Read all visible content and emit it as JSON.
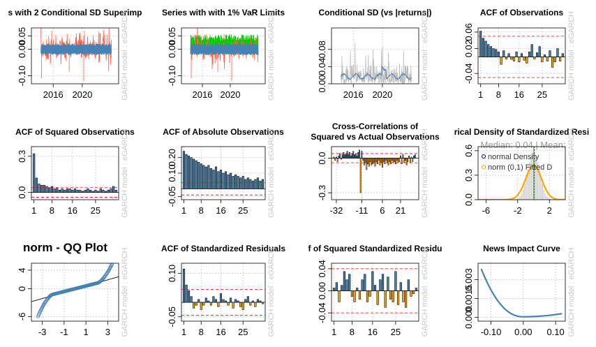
{
  "panels": [
    {
      "id": "p1",
      "type": "line",
      "title": "s with 2 Conditional SD Superimp",
      "ylim": [
        -0.13,
        0.08
      ],
      "xlim": [
        2013,
        2025
      ],
      "yticks": [
        {
          "v": -0.1,
          "t": "-0.10"
        },
        {
          "v": 0,
          "t": "0.00"
        },
        {
          "v": 0.05,
          "t": "0.05"
        }
      ],
      "xticks": [
        {
          "v": 2016,
          "t": "2016"
        },
        {
          "v": 2020,
          "t": "2020"
        }
      ],
      "series": [
        {
          "color": "#ff6347",
          "style": "returns",
          "amp": 0.035,
          "spikes": [
            [
              2014.4,
              -0.11
            ],
            [
              2015.8,
              0.07
            ],
            [
              2018.2,
              -0.085
            ],
            [
              2020.2,
              -0.12
            ],
            [
              2020.3,
              0.07
            ],
            [
              2022.4,
              0.06
            ]
          ]
        },
        {
          "color": "#4682b4",
          "style": "band",
          "amp": 0.02
        }
      ],
      "side_text": "GARCH model : eGARCH"
    },
    {
      "id": "p2",
      "type": "line",
      "title": "Series with with 1% VaR Limits",
      "ylim": [
        -0.13,
        0.08
      ],
      "xlim": [
        2013,
        2025
      ],
      "yticks": [
        {
          "v": -0.1,
          "t": "-0.10"
        },
        {
          "v": 0,
          "t": "0.00"
        },
        {
          "v": 0.05,
          "t": "0.05"
        }
      ],
      "xticks": [
        {
          "v": 2016,
          "t": "2016"
        },
        {
          "v": 2020,
          "t": "2020"
        }
      ],
      "series": [
        {
          "color": "#00cc00",
          "style": "upper",
          "amp": 0.04
        },
        {
          "color": "#ff6347",
          "style": "returns",
          "amp": 0.03,
          "spikes": [
            [
              2014.4,
              -0.11
            ],
            [
              2018.2,
              -0.085
            ],
            [
              2020.2,
              -0.12
            ]
          ]
        },
        {
          "color": "#4682b4",
          "style": "band",
          "amp": 0.02
        }
      ],
      "side_text": "GARCH model : eGARCH"
    },
    {
      "id": "p3",
      "type": "line",
      "title": "Conditional SD (vs |returns|)",
      "ylim": [
        0,
        0.13
      ],
      "xlim": [
        2013,
        2025
      ],
      "yticks": [
        {
          "v": 0,
          "t": "0.00"
        },
        {
          "v": 0.04,
          "t": "0.04"
        },
        {
          "v": 0.08,
          "t": "0.08"
        }
      ],
      "xticks": [
        {
          "v": 2016,
          "t": "2016"
        },
        {
          "v": 2020,
          "t": "2020"
        }
      ],
      "series": [
        {
          "color": "#bbbbbb",
          "style": "abs",
          "amp": 0.04
        },
        {
          "color": "#4682b4",
          "style": "sd",
          "amp": 0.015
        }
      ],
      "side_text": "GARCH model : eGARCH"
    },
    {
      "id": "p4",
      "type": "acf",
      "title": "ACF of Observations",
      "ylim": [
        -0.065,
        0.07
      ],
      "ci": 0.05,
      "yticks": [
        {
          "v": -0.04,
          "t": "-0.04"
        },
        {
          "v": 0.02,
          "t": "0.02"
        },
        {
          "v": 0.06,
          "t": "0.06"
        }
      ],
      "xticks": [
        {
          "v": 1,
          "t": "1"
        },
        {
          "v": 8,
          "t": "8"
        },
        {
          "v": 16,
          "t": "16"
        },
        {
          "v": 25,
          "t": "25"
        }
      ],
      "lags": 33,
      "values": [
        0.062,
        0.045,
        0.038,
        0.03,
        0.025,
        0.02,
        0.018,
        0.012,
        -0.018,
        0.015,
        -0.005,
        0.008,
        -0.006,
        -0.01,
        0.012,
        -0.012,
        0.008,
        -0.008,
        -0.015,
        0.012,
        0.03,
        -0.005,
        0.01,
        0.025,
        -0.012,
        0.005,
        -0.01,
        0.015,
        -0.025,
        -0.012,
        0.02,
        -0.01,
        0.008
      ],
      "side_text": "GARCH model : eGARCH"
    },
    {
      "id": "p5",
      "type": "acf",
      "title": "ACF of Squared Observations",
      "ylim": [
        -0.06,
        0.38
      ],
      "ci": 0.04,
      "yticks": [
        {
          "v": 0,
          "t": "0.0"
        },
        {
          "v": 0.3,
          "t": "0.3"
        }
      ],
      "xticks": [
        {
          "v": 1,
          "t": "1"
        },
        {
          "v": 8,
          "t": "8"
        },
        {
          "v": 16,
          "t": "16"
        },
        {
          "v": 25,
          "t": "25"
        }
      ],
      "lags": 33,
      "values": [
        0.32,
        0.12,
        0.07,
        0.06,
        0.06,
        0.05,
        0.04,
        0.05,
        0.03,
        0.04,
        0.02,
        0.03,
        0.02,
        0.03,
        0.03,
        0.02,
        0.03,
        0.02,
        0.02,
        0.01,
        0.02,
        0.03,
        0.02,
        0.01,
        0.02,
        0.01,
        0.03,
        0.02,
        0.01,
        0.02,
        0.03,
        0.05,
        0.02
      ],
      "side_text": "GARCH model : eGARCH"
    },
    {
      "id": "p6",
      "type": "acf",
      "title": "ACF of Absolute Observations",
      "ylim": [
        -0.07,
        0.27
      ],
      "ci": 0.04,
      "yticks": [
        {
          "v": -0.05,
          "t": "-0.05"
        },
        {
          "v": 0.1,
          "t": "0.10"
        },
        {
          "v": 0.2,
          "t": "0.20"
        }
      ],
      "xticks": [
        {
          "v": 1,
          "t": "1"
        },
        {
          "v": 8,
          "t": "8"
        },
        {
          "v": 16,
          "t": "16"
        },
        {
          "v": 25,
          "t": "25"
        }
      ],
      "lags": 33,
      "values": [
        0.24,
        0.22,
        0.21,
        0.2,
        0.19,
        0.18,
        0.17,
        0.16,
        0.15,
        0.14,
        0.15,
        0.13,
        0.12,
        0.14,
        0.11,
        0.12,
        0.1,
        0.11,
        0.09,
        0.1,
        0.08,
        0.09,
        0.08,
        0.07,
        0.08,
        0.06,
        0.07,
        0.06,
        0.05,
        0.06,
        0.07,
        0.05,
        0.06
      ],
      "side_text": "GARCH model : eGARCH"
    },
    {
      "id": "p7",
      "type": "ccf",
      "title": "Cross-Correlations of",
      "title2": "Squared vs Actual Observations",
      "ylim": [
        -0.36,
        0.1
      ],
      "ci": 0.04,
      "yticks": [
        {
          "v": -0.3,
          "t": "-0.3"
        },
        {
          "v": 0,
          "t": "0.0"
        }
      ],
      "xticks": [
        {
          "v": -32,
          "t": "-32"
        },
        {
          "v": -11,
          "t": "-11"
        },
        {
          "v": 6,
          "t": "6"
        },
        {
          "v": 21,
          "t": "21"
        }
      ],
      "xlim": [
        -36,
        36
      ],
      "values": [
        0.01,
        -0.02,
        0.01,
        -0.03,
        0.02,
        0.04,
        -0.01,
        0.03,
        0.05,
        0.03,
        0.04,
        0.06,
        0.03,
        0.05,
        0.02,
        0.04,
        0.06,
        0.03,
        0.04,
        0.02,
        0.05,
        0.07,
        -0.3,
        0.06,
        -0.02,
        -0.06,
        -0.04,
        -0.1,
        -0.05,
        -0.07,
        -0.03,
        -0.06,
        -0.05,
        -0.04,
        -0.07,
        -0.03,
        -0.05,
        -0.02,
        -0.06,
        -0.04,
        -0.08,
        -0.03,
        -0.05,
        -0.02,
        -0.04,
        -0.06,
        -0.03,
        -0.05,
        -0.02,
        -0.04,
        -0.03,
        -0.05,
        -0.02,
        -0.04,
        -0.03,
        0.02,
        -0.05,
        0.03,
        -0.04,
        -0.02,
        -0.06,
        -0.03,
        0.02,
        -0.04,
        0.01,
        -0.03,
        0.02,
        0.03
      ],
      "side_text": "GARCH model : eGARCH"
    },
    {
      "id": "p8",
      "type": "density",
      "title": "rical Density of Standardized Resi",
      "subtitle": "Median:  0.04 | Mean:",
      "ylim": [
        0,
        0.65
      ],
      "xlim": [
        -7,
        4
      ],
      "yticks": [
        {
          "v": 0,
          "t": "0.0"
        },
        {
          "v": 0.3,
          "t": "0.3"
        },
        {
          "v": 0.6,
          "t": "0.6"
        }
      ],
      "xticks": [
        {
          "v": -6,
          "t": "-6"
        },
        {
          "v": -2,
          "t": "-2"
        },
        {
          "v": 2,
          "t": "2"
        }
      ],
      "legend": [
        "normal Density",
        "norm (0,1) Fitted D"
      ],
      "side_text": "GARCH model : eGARCH"
    },
    {
      "id": "p9",
      "type": "qq",
      "title": "norm - QQ Plot",
      "ylim": [
        -7,
        5.5
      ],
      "xlim": [
        -4,
        4
      ],
      "yticks": [
        {
          "v": -6,
          "t": "-6"
        },
        {
          "v": 0,
          "t": "0"
        },
        {
          "v": 4,
          "t": "4"
        }
      ],
      "xticks": [
        {
          "v": -3,
          "t": "-3"
        },
        {
          "v": -1,
          "t": "-1"
        },
        {
          "v": 1,
          "t": "1"
        },
        {
          "v": 3,
          "t": "3"
        }
      ],
      "side_text": "GARCH model : eGARCH"
    },
    {
      "id": "p10",
      "type": "acf",
      "title": "ACF of Standardized Residuals",
      "ylim": [
        -0.065,
        0.135
      ],
      "ci": 0.045,
      "yticks": [
        {
          "v": -0.05,
          "t": "-0.05"
        },
        {
          "v": 0.1,
          "t": "0.10"
        }
      ],
      "xticks": [
        {
          "v": 1,
          "t": "1"
        },
        {
          "v": 8,
          "t": "8"
        },
        {
          "v": 16,
          "t": "16"
        },
        {
          "v": 25,
          "t": "25"
        }
      ],
      "lags": 33,
      "values": [
        0.115,
        0.06,
        0.04,
        0.02,
        -0.02,
        -0.01,
        0.01,
        -0.025,
        -0.01,
        0.015,
        0.005,
        -0.01,
        0.02,
        0.01,
        -0.015,
        0.03,
        0.01,
        0.005,
        -0.01,
        0.015,
        -0.02,
        0.01,
        0.005,
        -0.015,
        -0.025,
        0.01,
        0.02,
        -0.01,
        0.005,
        -0.015,
        0.01,
        0.005,
        -0.005
      ],
      "side_text": "GARCH model : eGARCH"
    },
    {
      "id": "p11",
      "type": "acf",
      "title": "f of Squared Standardized Residu",
      "ylim": [
        -0.055,
        0.05
      ],
      "ci": 0.04,
      "yticks": [
        {
          "v": -0.04,
          "t": "-0.04"
        },
        {
          "v": 0,
          "t": "0.00"
        },
        {
          "v": 0.04,
          "t": "0.04"
        }
      ],
      "xticks": [
        {
          "v": 1,
          "t": "1"
        },
        {
          "v": 8,
          "t": "8"
        },
        {
          "v": 16,
          "t": "16"
        },
        {
          "v": 25,
          "t": "25"
        }
      ],
      "lags": 33,
      "values": [
        0.005,
        0.015,
        -0.02,
        0.01,
        0.035,
        0.02,
        0.03,
        -0.01,
        -0.02,
        0.005,
        -0.015,
        0.02,
        0.03,
        -0.02,
        -0.01,
        0.035,
        0.01,
        -0.025,
        0.02,
        0.03,
        -0.03,
        0.025,
        -0.015,
        -0.02,
        0.035,
        -0.025,
        0.015,
        -0.02,
        -0.03,
        0.02,
        -0.01,
        -0.005,
        0.005
      ],
      "side_text": "GARCH model : eGARCH"
    },
    {
      "id": "p12",
      "type": "nic",
      "title": "News Impact Curve",
      "ylim": [
        -0.0003,
        0.0043
      ],
      "xlim": [
        -0.14,
        0.13
      ],
      "yticks": [
        {
          "v": 0,
          "t": "0.000"
        },
        {
          "v": 0.0015,
          "t": "0.0015"
        },
        {
          "v": 0.003,
          "t": "0.003"
        }
      ],
      "xticks": [
        {
          "v": -0.1,
          "t": "-0.10"
        },
        {
          "v": 0,
          "t": "0.00"
        },
        {
          "v": 0.1,
          "t": "0.10"
        }
      ],
      "side_text": "GARCH model : eGARCH"
    }
  ],
  "colors": {
    "steelblue": "#4682b4",
    "orange": "#ffa500",
    "red_dash": "#ff0000",
    "returns": "#ff6347",
    "var_limit": "#00cc00",
    "grid": "#d3d3d3",
    "side_text": "#c8c8c8"
  }
}
